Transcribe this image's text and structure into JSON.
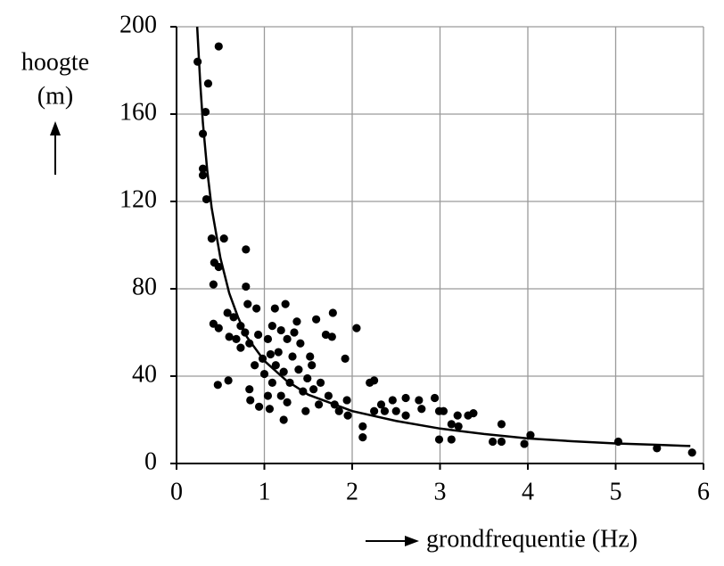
{
  "chart_data": {
    "type": "scatter",
    "ylabel": [
      "hoogte",
      "(m)"
    ],
    "xlabel": "grondfrequentie (Hz)",
    "xlim": [
      0,
      6
    ],
    "xticks": [
      0,
      1,
      2,
      3,
      4,
      5,
      6
    ],
    "ylim": [
      0,
      200
    ],
    "yticks": [
      0,
      40,
      80,
      120,
      160,
      200
    ],
    "grid": true,
    "series": [
      {
        "type": "scatter",
        "color": "#000000",
        "x": [
          0.24,
          0.48,
          0.36,
          0.33,
          0.3,
          0.3,
          0.3,
          0.34,
          0.4,
          0.54,
          0.43,
          0.48,
          0.42,
          0.79,
          0.79,
          0.42,
          0.48,
          0.47,
          0.59,
          0.58,
          0.65,
          0.73,
          0.6,
          0.68,
          0.73,
          0.78,
          0.83,
          0.81,
          0.91,
          0.93,
          0.89,
          0.83,
          0.84,
          0.94,
          1.04,
          1.0,
          0.98,
          1.04,
          1.09,
          1.12,
          1.19,
          1.24,
          1.26,
          1.16,
          1.07,
          1.13,
          1.22,
          1.09,
          1.06,
          1.19,
          1.22,
          1.26,
          1.29,
          1.32,
          1.34,
          1.37,
          1.41,
          1.39,
          1.44,
          1.47,
          1.49,
          1.52,
          1.54,
          1.59,
          1.56,
          1.62,
          1.64,
          1.7,
          1.73,
          1.78,
          1.77,
          1.8,
          1.85,
          1.92,
          1.94,
          1.95,
          2.05,
          2.12,
          2.12,
          2.2,
          2.25,
          2.25,
          2.33,
          2.37,
          2.46,
          2.5,
          2.61,
          2.61,
          2.76,
          2.79,
          2.94,
          2.99,
          3.04,
          2.99,
          3.13,
          3.13,
          3.2,
          3.21,
          3.32,
          3.38,
          3.6,
          3.7,
          3.7,
          3.96,
          4.03,
          5.03,
          5.47,
          5.87
        ],
        "values": [
          184,
          191,
          174,
          161,
          151,
          135,
          132,
          121,
          103,
          103,
          92,
          90,
          82,
          98,
          81,
          64,
          62,
          36,
          38,
          69,
          67,
          63,
          58,
          57,
          53,
          60,
          55,
          73,
          71,
          59,
          45,
          34,
          29,
          26,
          31,
          41,
          48,
          57,
          63,
          71,
          61,
          73,
          57,
          51,
          50,
          45,
          42,
          37,
          25,
          31,
          20,
          28,
          37,
          49,
          60,
          65,
          55,
          43,
          33,
          24,
          39,
          49,
          45,
          66,
          34,
          27,
          37,
          59,
          31,
          69,
          58,
          27,
          24,
          48,
          29,
          22,
          62,
          17,
          12,
          37,
          38,
          24,
          27,
          24,
          29,
          24,
          30,
          22,
          29,
          25,
          30,
          24,
          24,
          11,
          11,
          18,
          22,
          17,
          22,
          23,
          10,
          18,
          10,
          9,
          13,
          10,
          7,
          5
        ]
      },
      {
        "type": "line",
        "color": "#000000",
        "x": [
          0.235,
          0.27,
          0.3,
          0.35,
          0.4,
          0.5,
          0.6,
          0.7,
          0.8,
          1,
          1.25,
          1.5,
          2,
          2.5,
          3,
          3.5,
          4,
          4.5,
          5,
          5.5,
          5.85
        ],
        "values": [
          200,
          174,
          156,
          134,
          117,
          94,
          78,
          67,
          58,
          47,
          38,
          31.5,
          24,
          19.5,
          16,
          13.5,
          11.5,
          10.2,
          9.2,
          8.5,
          8
        ]
      }
    ]
  }
}
